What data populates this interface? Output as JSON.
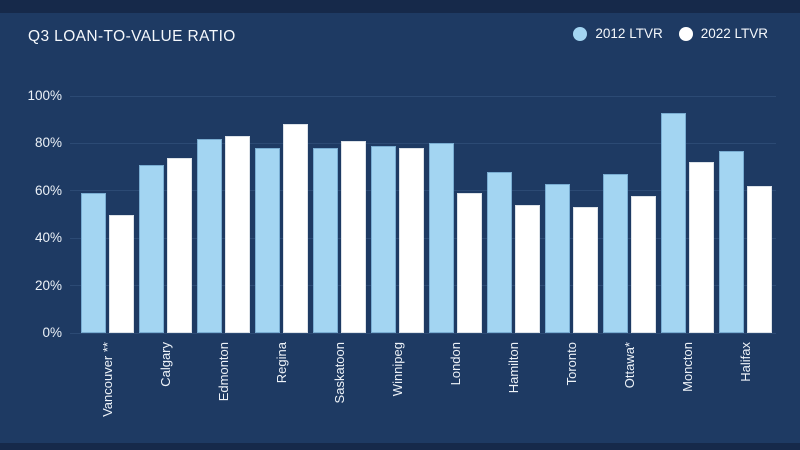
{
  "title": "Q3 LOAN-TO-VALUE RATIO",
  "colors": {
    "background": "#1E3A63",
    "accent_band": "#16294A",
    "gridline": "#2C4A74",
    "text": "#F5F8FC",
    "series_2012_fill": "#A3D5F2",
    "series_2012_border": "#79ADD2",
    "series_2022_fill": "#FFFFFF",
    "series_2022_border": "#DCE2E8"
  },
  "legend": {
    "items": [
      {
        "label": "2012 LTVR"
      },
      {
        "label": "2022 LTVR"
      }
    ]
  },
  "chart_data": {
    "type": "bar",
    "title": "Q3 LOAN-TO-VALUE RATIO",
    "categories": [
      "Vancouver **",
      "Calgary",
      "Edmonton",
      "Regina",
      "Saskatoon",
      "Winnipeg",
      "London",
      "Hamilton",
      "Toronto",
      "Ottawa*",
      "Moncton",
      "Halifax"
    ],
    "series": [
      {
        "name": "2012 LTVR",
        "color": "#A3D5F2",
        "values": [
          59,
          71,
          82,
          78,
          78,
          79,
          80,
          68,
          63,
          67,
          93,
          77
        ]
      },
      {
        "name": "2022 LTVR",
        "color": "#FFFFFF",
        "values": [
          50,
          74,
          83,
          88,
          81,
          78,
          59,
          54,
          53,
          58,
          72,
          62
        ]
      }
    ],
    "xlabel": "",
    "ylabel": "",
    "ylim": [
      0,
      100
    ],
    "y_ticks": [
      "0%",
      "20%",
      "40%",
      "60%",
      "80%",
      "100%"
    ],
    "grid": true,
    "legend_position": "top-right",
    "x_label_rotation": -90
  }
}
